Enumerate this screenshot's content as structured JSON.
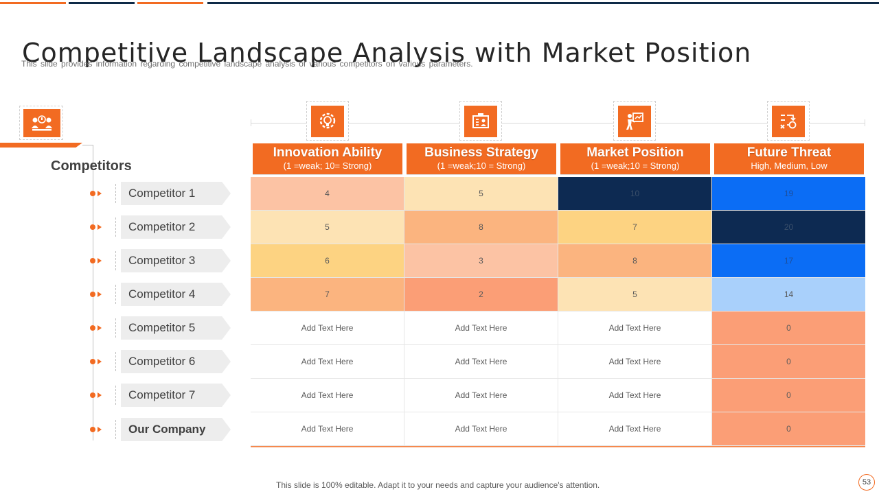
{
  "slide": {
    "title": "Competitive Landscape Analysis with Market Position",
    "subtitle": "This slide provides information regarding competitive landscape analysis of various competitors on various parameters.",
    "footer": "This slide is 100% editable. Adapt it to your needs and capture your audience's attention.",
    "page_number": "53"
  },
  "colors": {
    "accent": "#f26b22",
    "navy": "#0e2a47"
  },
  "competitors_heading": "Competitors",
  "competitors": [
    {
      "label": "Competitor 1"
    },
    {
      "label": "Competitor 2"
    },
    {
      "label": "Competitor 3"
    },
    {
      "label": "Competitor 4"
    },
    {
      "label": "Competitor 5"
    },
    {
      "label": "Competitor 6"
    },
    {
      "label": "Competitor 7"
    },
    {
      "label": "Our Company"
    }
  ],
  "columns": [
    {
      "title": "Innovation Ability",
      "scale": "(1 =weak;  10= Strong)",
      "icon": "lightbulb-gear-icon"
    },
    {
      "title": "Business Strategy",
      "scale": "(1 =weak;10 = Strong)",
      "icon": "strategy-board-icon"
    },
    {
      "title": "Market Position",
      "scale": "(1 =weak;10 = Strong)",
      "icon": "person-presentation-icon"
    },
    {
      "title": "Future Threat",
      "scale": "High,  Medium,  Low",
      "icon": "planning-flow-icon"
    }
  ],
  "left_icon": "meeting-icon",
  "rows": [
    [
      {
        "v": "4",
        "bg": "#fcc3a4"
      },
      {
        "v": "5",
        "bg": "#fde3b4"
      },
      {
        "v": "10",
        "bg": "#0d2a52",
        "fg": "#3a4f6a"
      },
      {
        "v": "19",
        "bg": "#0b6df5",
        "fg": "#1d4f9c"
      }
    ],
    [
      {
        "v": "5",
        "bg": "#fde3b4"
      },
      {
        "v": "8",
        "bg": "#fbb47f"
      },
      {
        "v": "7",
        "bg": "#fdd382"
      },
      {
        "v": "20",
        "bg": "#0d2a52",
        "fg": "#3a4f6a"
      }
    ],
    [
      {
        "v": "6",
        "bg": "#fdd382"
      },
      {
        "v": "3",
        "bg": "#fcc3a4"
      },
      {
        "v": "8",
        "bg": "#fbb47f"
      },
      {
        "v": "17",
        "bg": "#0b6df5",
        "fg": "#1d4f9c"
      }
    ],
    [
      {
        "v": "7",
        "bg": "#fbb47f"
      },
      {
        "v": "2",
        "bg": "#fb9e76"
      },
      {
        "v": "5",
        "bg": "#fde3b4"
      },
      {
        "v": "14",
        "bg": "#a9d0fb"
      }
    ],
    [
      {
        "v": "Add Text Here",
        "bg": "#ffffff"
      },
      {
        "v": "Add Text Here",
        "bg": "#ffffff"
      },
      {
        "v": "Add Text Here",
        "bg": "#ffffff"
      },
      {
        "v": "0",
        "bg": "#fb9e76"
      }
    ],
    [
      {
        "v": "Add Text Here",
        "bg": "#ffffff"
      },
      {
        "v": "Add Text Here",
        "bg": "#ffffff"
      },
      {
        "v": "Add Text Here",
        "bg": "#ffffff"
      },
      {
        "v": "0",
        "bg": "#fb9e76"
      }
    ],
    [
      {
        "v": "Add Text Here",
        "bg": "#ffffff"
      },
      {
        "v": "Add Text Here",
        "bg": "#ffffff"
      },
      {
        "v": "Add Text Here",
        "bg": "#ffffff"
      },
      {
        "v": "0",
        "bg": "#fb9e76"
      }
    ],
    [
      {
        "v": "Add Text Here",
        "bg": "#ffffff"
      },
      {
        "v": "Add Text Here",
        "bg": "#ffffff"
      },
      {
        "v": "Add Text Here",
        "bg": "#ffffff"
      },
      {
        "v": "0",
        "bg": "#fb9e76"
      }
    ]
  ]
}
